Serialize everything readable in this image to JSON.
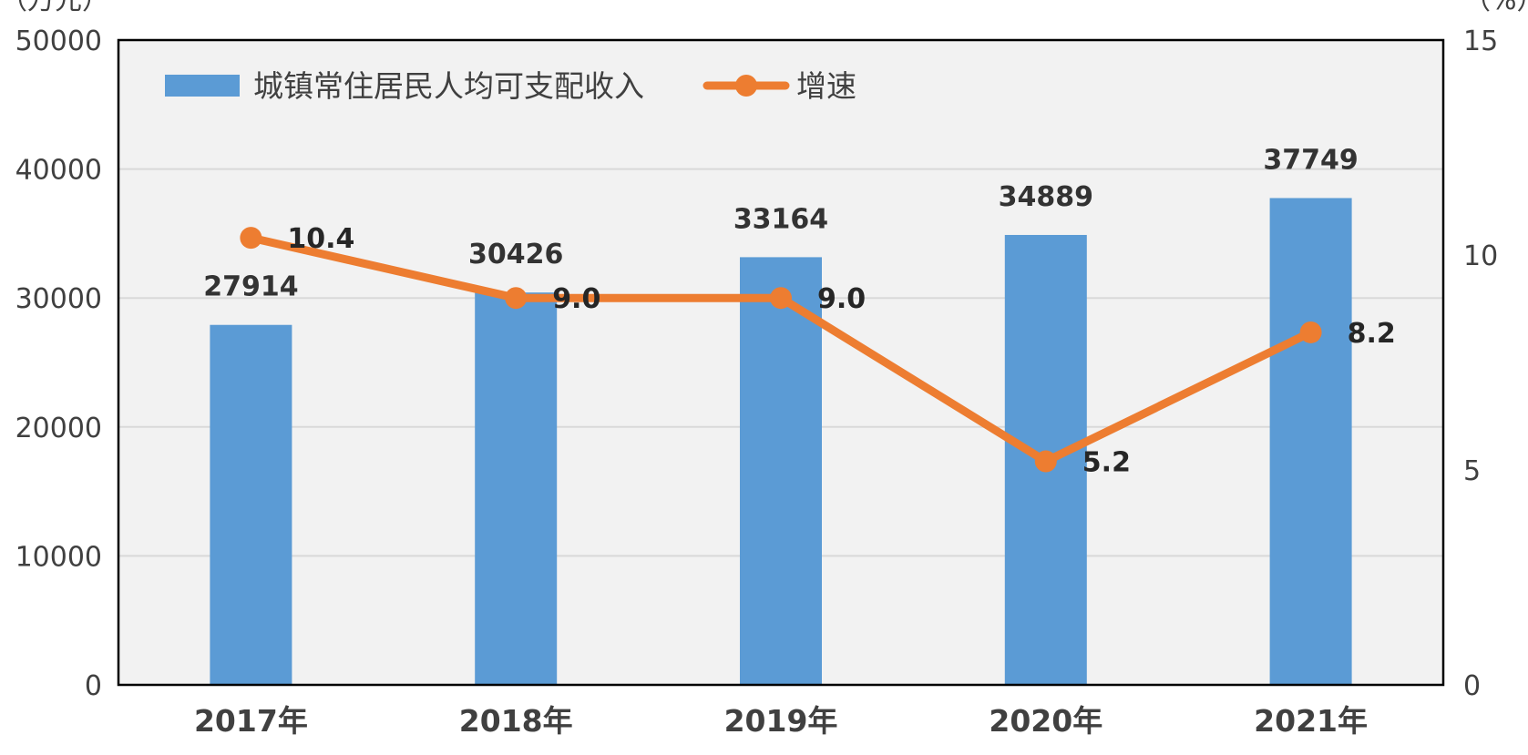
{
  "chart_data": {
    "type": "bar",
    "categories": [
      "2017年",
      "2018年",
      "2019年",
      "2020年",
      "2021年"
    ],
    "series": [
      {
        "name": "城镇常住居民人均可支配收入",
        "type": "bar",
        "axis": "left",
        "values": [
          27914,
          30426,
          33164,
          34889,
          37749
        ],
        "labels": [
          "27914",
          "30426",
          "33164",
          "34889",
          "37749"
        ]
      },
      {
        "name": "增速",
        "type": "line",
        "axis": "right",
        "values": [
          10.4,
          9.0,
          9.0,
          5.2,
          8.2
        ],
        "labels": [
          "10.4",
          "9.0",
          "9.0",
          "5.2",
          "8.2"
        ]
      }
    ],
    "y_left": {
      "unit": "（万元）",
      "range": [
        0,
        50000
      ],
      "ticks": [
        "0",
        "10000",
        "20000",
        "30000",
        "40000",
        "50000"
      ]
    },
    "y_right": {
      "unit": "（%）",
      "range": [
        0,
        15
      ],
      "ticks": [
        "0",
        "5",
        "10",
        "15"
      ]
    },
    "grid": true,
    "legend_position": "top-left",
    "colors": {
      "bar": "#5b9bd5",
      "line": "#ed7d31",
      "plot_background": "#f2f2f2",
      "gridline": "#d9d9d9",
      "frame": "#000000"
    }
  }
}
